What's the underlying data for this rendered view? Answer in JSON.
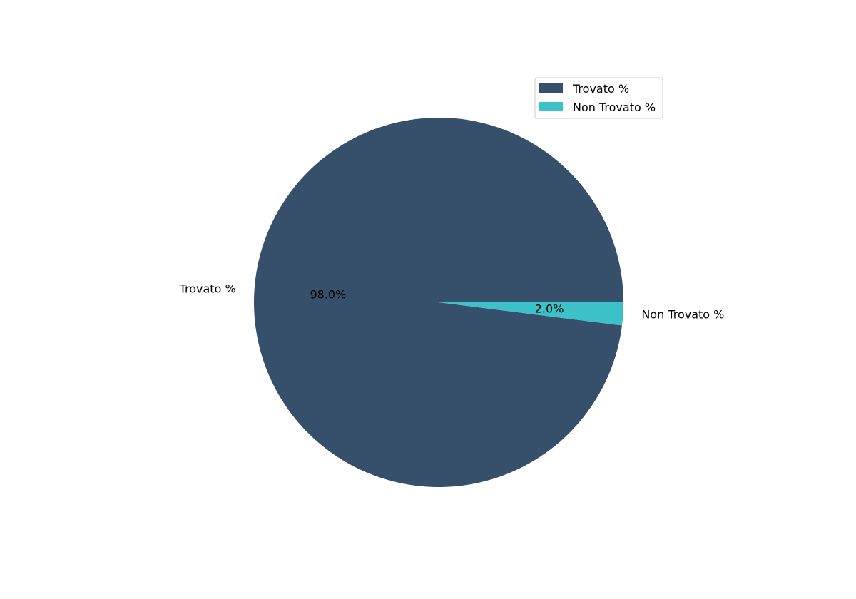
{
  "chart_data": {
    "type": "pie",
    "categories": [
      "Trovato %",
      "Non Trovato %"
    ],
    "values": [
      98.0,
      2.0
    ],
    "percent_labels": [
      "98.0%",
      "2.0%"
    ],
    "colors": [
      "#36506b",
      "#3dc1c9"
    ],
    "legend": {
      "placement": "upper-right",
      "entries": [
        "Trovato %",
        "Non Trovato %"
      ]
    }
  }
}
